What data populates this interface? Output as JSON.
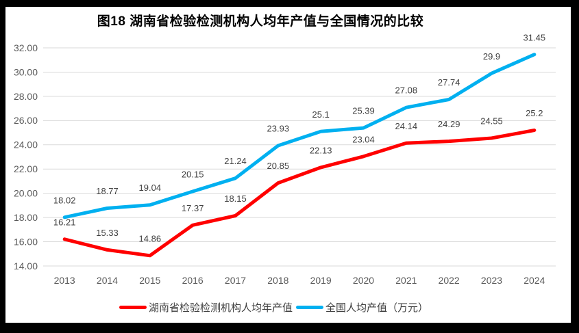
{
  "page": {
    "background": "#ffffff",
    "frame_color": "#000000"
  },
  "chart_data": {
    "type": "line",
    "title": "图18 湖南省检验检测机构人均年产值与全国情况的比较",
    "categories": [
      "2013",
      "2014",
      "2015",
      "2016",
      "2017",
      "2018",
      "2019",
      "2020",
      "2021",
      "2022",
      "2023",
      "2024"
    ],
    "series": [
      {
        "name": "湖南省检验检测机构人均年产值",
        "color": "#FF0000",
        "values": [
          16.21,
          15.33,
          14.86,
          17.37,
          18.15,
          20.85,
          22.13,
          23.04,
          24.14,
          24.29,
          24.55,
          25.2
        ],
        "labels": [
          "16.21",
          "15.33",
          "14.86",
          "17.37",
          "18.15",
          "20.85",
          "22.13",
          "23.04",
          "24.14",
          "24.29",
          "24.55",
          "25.2"
        ]
      },
      {
        "name": "全国人均产值（万元）",
        "color": "#00B0F0",
        "values": [
          18.02,
          18.77,
          19.04,
          20.15,
          21.24,
          23.93,
          25.1,
          25.39,
          27.08,
          27.74,
          29.9,
          31.45
        ],
        "labels": [
          "18.02",
          "18.77",
          "19.04",
          "20.15",
          "21.24",
          "23.93",
          "25.1",
          "25.39",
          "27.08",
          "27.74",
          "29.9",
          "31.45"
        ]
      }
    ],
    "xlabel": "",
    "ylabel": "",
    "ylim": [
      14,
      32
    ],
    "y_axis": {
      "min": 14,
      "max": 32,
      "step": 2,
      "tick_labels": [
        "32.00",
        "30.00",
        "28.00",
        "26.00",
        "24.00",
        "22.00",
        "20.00",
        "18.00",
        "16.00",
        "14.00"
      ]
    },
    "grid": true,
    "grid_color": "#D9D9D9",
    "legend_position": "bottom",
    "text_colors": {
      "title": "#000000",
      "axis": "#595959",
      "data_label": "#404040",
      "legend": "#404040"
    }
  }
}
